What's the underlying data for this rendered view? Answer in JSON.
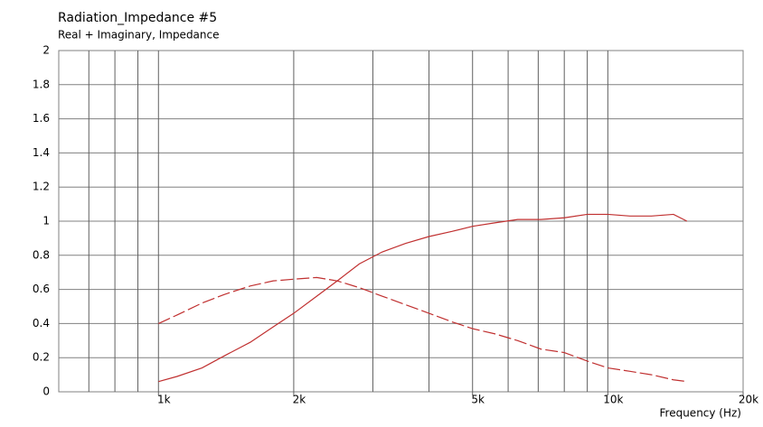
{
  "chart_data": {
    "type": "line",
    "title": "Radiation_Impedance #5",
    "subtitle": "Real + Imaginary, Impedance",
    "x_label": "Frequency (Hz)",
    "x_scale": "log",
    "xlim": [
      600,
      20000
    ],
    "xticks": [
      {
        "value": 1000,
        "label": "1k"
      },
      {
        "value": 2000,
        "label": "2k"
      },
      {
        "value": 5000,
        "label": "5k"
      },
      {
        "value": 10000,
        "label": "10k"
      },
      {
        "value": 20000,
        "label": "20k"
      }
    ],
    "x_grid": [
      700,
      800,
      900,
      1000,
      2000,
      3000,
      4000,
      5000,
      6000,
      7000,
      8000,
      9000,
      10000
    ],
    "ylim": [
      0,
      2
    ],
    "yticks": [
      0,
      0.2,
      0.4,
      0.6,
      0.8,
      1,
      1.2,
      1.4,
      1.6,
      1.8,
      2
    ],
    "grid": true,
    "x": [
      1000,
      1100,
      1250,
      1400,
      1600,
      1800,
      2000,
      2250,
      2500,
      2800,
      3150,
      3550,
      4000,
      4500,
      5000,
      5600,
      6300,
      7100,
      8000,
      9000,
      10000,
      11200,
      12500,
      14000,
      15000
    ],
    "series": [
      {
        "color": "#c03030",
        "dash": false,
        "values": [
          0.06,
          0.09,
          0.14,
          0.21,
          0.29,
          0.38,
          0.46,
          0.56,
          0.65,
          0.75,
          0.82,
          0.87,
          0.91,
          0.94,
          0.97,
          0.99,
          1.01,
          1.01,
          1.02,
          1.04,
          1.04,
          1.03,
          1.03,
          1.04,
          1.0
        ]
      },
      {
        "color": "#c03030",
        "dash": true,
        "values": [
          0.4,
          0.45,
          0.52,
          0.57,
          0.62,
          0.65,
          0.66,
          0.67,
          0.65,
          0.61,
          0.56,
          0.51,
          0.46,
          0.41,
          0.37,
          0.34,
          0.3,
          0.25,
          0.23,
          0.18,
          0.14,
          0.12,
          0.1,
          0.07,
          0.06
        ]
      }
    ]
  }
}
